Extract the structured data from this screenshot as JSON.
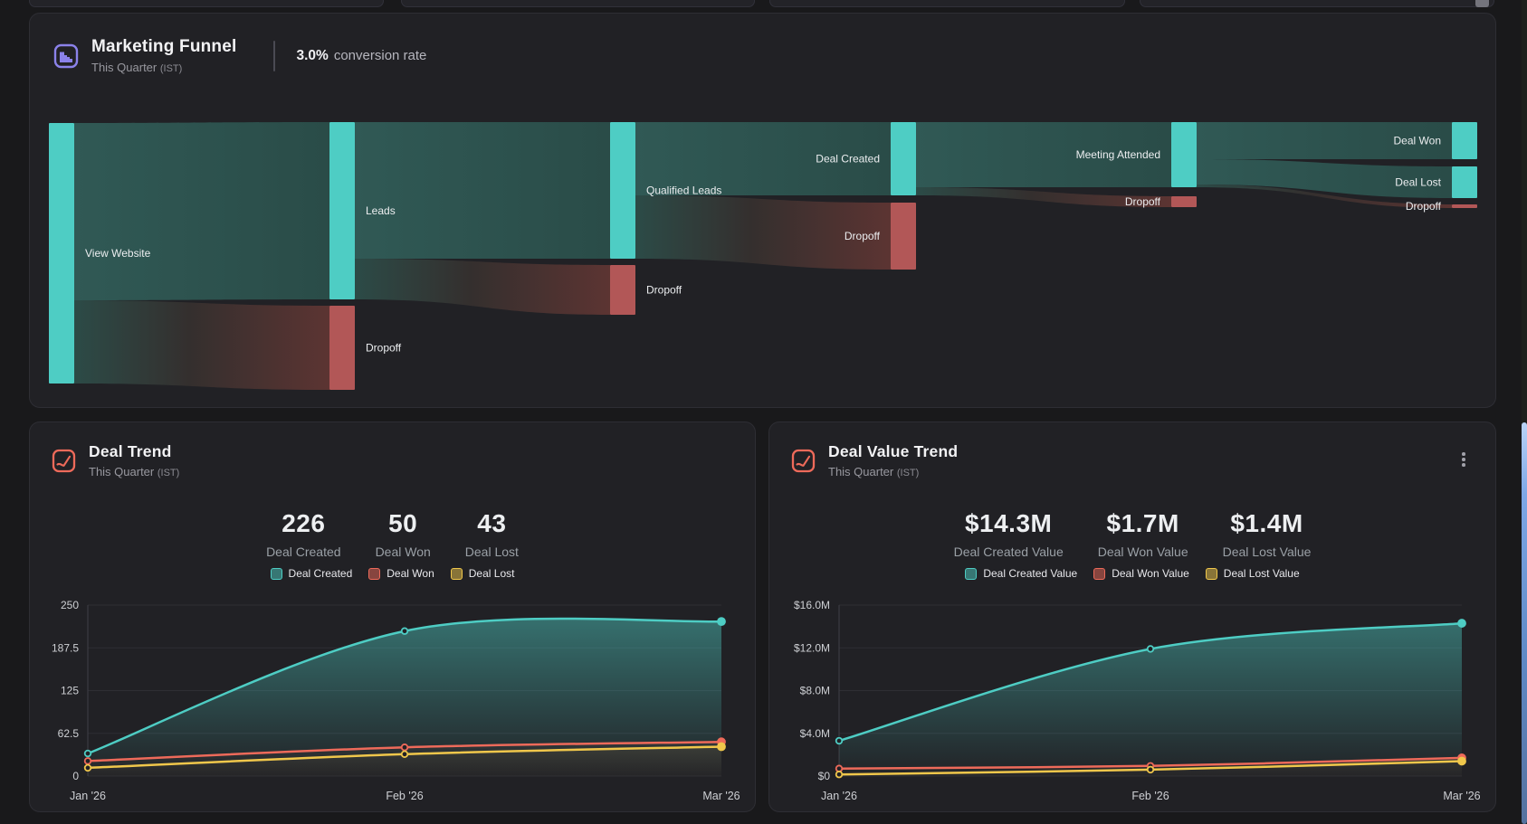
{
  "colors": {
    "teal": "#4ecdc4",
    "sankey_dropoff_red": "#b25757",
    "line_red": "#ee6a5a",
    "line_yellow": "#f0c74b",
    "accent_purple": "#8b82ea",
    "accent_red": "#ee6a5a",
    "scrollbar_blue": "#7da7e6",
    "card_bg": "#212125",
    "page_bg": "#19191b"
  },
  "funnel_card": {
    "title": "Marketing Funnel",
    "subtitle": "This Quarter",
    "timezone": "(IST)",
    "conversion_rate_value": "3.0%",
    "conversion_rate_label": "conversion rate",
    "chart_data": {
      "type": "sankey",
      "note": "node y/size are relative magnitudes as depicted",
      "nodes": [
        {
          "id": "view-website",
          "label": "View Website",
          "col": 0,
          "y": 10,
          "size": 288,
          "kind": "stage",
          "side": "right"
        },
        {
          "id": "leads",
          "label": "Leads",
          "col": 1,
          "y": 9,
          "size": 196,
          "kind": "stage",
          "side": "right"
        },
        {
          "id": "dropoff-1",
          "label": "Dropoff",
          "col": 1,
          "y": 212,
          "size": 93,
          "kind": "dropoff",
          "side": "right"
        },
        {
          "id": "qualified-leads",
          "label": "Qualified Leads",
          "col": 2,
          "y": 9,
          "size": 151,
          "kind": "stage",
          "side": "right"
        },
        {
          "id": "dropoff-2",
          "label": "Dropoff",
          "col": 2,
          "y": 167,
          "size": 55,
          "kind": "dropoff",
          "side": "right"
        },
        {
          "id": "deal-created",
          "label": "Deal Created",
          "col": 3,
          "y": 9,
          "size": 81,
          "kind": "stage",
          "side": "left"
        },
        {
          "id": "dropoff-3",
          "label": "Dropoff",
          "col": 3,
          "y": 98,
          "size": 74,
          "kind": "dropoff",
          "side": "left"
        },
        {
          "id": "meeting-attended",
          "label": "Meeting Attended",
          "col": 4,
          "y": 9,
          "size": 72,
          "kind": "stage",
          "side": "left"
        },
        {
          "id": "dropoff-4",
          "label": "Dropoff",
          "col": 4,
          "y": 91,
          "size": 12,
          "kind": "dropoff",
          "side": "left"
        },
        {
          "id": "deal-won",
          "label": "Deal Won",
          "col": 5,
          "y": 9,
          "size": 41,
          "kind": "stage",
          "side": "left"
        },
        {
          "id": "deal-lost",
          "label": "Deal Lost",
          "col": 5,
          "y": 58,
          "size": 35,
          "kind": "stage",
          "side": "left"
        },
        {
          "id": "dropoff-5",
          "label": "Dropoff",
          "col": 5,
          "y": 100,
          "size": 4,
          "kind": "dropoff",
          "side": "left"
        }
      ],
      "links": [
        {
          "from": "view-website",
          "to": "leads",
          "s0": 10,
          "s1": 206,
          "t0": 9,
          "t1": 205,
          "kind": "flow"
        },
        {
          "from": "view-website",
          "to": "dropoff-1",
          "s0": 206,
          "s1": 298,
          "t0": 212,
          "t1": 305,
          "kind": "drop"
        },
        {
          "from": "leads",
          "to": "qualified-leads",
          "s0": 9,
          "s1": 160,
          "t0": 9,
          "t1": 160,
          "kind": "flow"
        },
        {
          "from": "leads",
          "to": "dropoff-2",
          "s0": 160,
          "s1": 205,
          "t0": 167,
          "t1": 222,
          "kind": "drop"
        },
        {
          "from": "qualified-leads",
          "to": "deal-created",
          "s0": 9,
          "s1": 90,
          "t0": 9,
          "t1": 90,
          "kind": "flow"
        },
        {
          "from": "qualified-leads",
          "to": "dropoff-3",
          "s0": 90,
          "s1": 160,
          "t0": 98,
          "t1": 172,
          "kind": "drop"
        },
        {
          "from": "deal-created",
          "to": "meeting-attended",
          "s0": 9,
          "s1": 81,
          "t0": 9,
          "t1": 81,
          "kind": "flow"
        },
        {
          "from": "deal-created",
          "to": "dropoff-4",
          "s0": 81,
          "s1": 90,
          "t0": 91,
          "t1": 103,
          "kind": "drop"
        },
        {
          "from": "meeting-attended",
          "to": "deal-won",
          "s0": 9,
          "s1": 50,
          "t0": 9,
          "t1": 50,
          "kind": "flow"
        },
        {
          "from": "meeting-attended",
          "to": "deal-lost",
          "s0": 50,
          "s1": 78,
          "t0": 58,
          "t1": 93,
          "kind": "flow"
        },
        {
          "from": "meeting-attended",
          "to": "dropoff-5",
          "s0": 78,
          "s1": 81,
          "t0": 100,
          "t1": 104,
          "kind": "drop"
        }
      ],
      "node_colors": {
        "stage": "#4ecdc4",
        "dropoff": "#b25757"
      }
    }
  },
  "deal_trend_card": {
    "title": "Deal Trend",
    "subtitle": "This Quarter",
    "timezone": "(IST)",
    "stats": [
      {
        "value": "226",
        "label": "Deal Created"
      },
      {
        "value": "50",
        "label": "Deal Won"
      },
      {
        "value": "43",
        "label": "Deal Lost"
      }
    ],
    "chart_data": {
      "type": "line",
      "x_labels": [
        "Jan '26",
        "Feb '26",
        "Mar '26"
      ],
      "ylim": [
        0,
        250
      ],
      "y_ticks": [
        {
          "v": 0,
          "label": "0"
        },
        {
          "v": 62.5,
          "label": "62.5"
        },
        {
          "v": 125,
          "label": "125"
        },
        {
          "v": 187.5,
          "label": "187.5"
        },
        {
          "v": 250,
          "label": "250"
        }
      ],
      "series": [
        {
          "name": "Deal Created",
          "color": "#4ecdc4",
          "area_opacity": 0.5,
          "values": [
            33,
            212,
            226
          ]
        },
        {
          "name": "Deal Won",
          "color": "#ee6a5a",
          "area_opacity": 0.22,
          "values": [
            22,
            42,
            50
          ]
        },
        {
          "name": "Deal Lost",
          "color": "#f0c74b",
          "area_opacity": 0.28,
          "values": [
            12,
            32,
            43
          ]
        }
      ],
      "legend_position": "top-center",
      "grid": true
    }
  },
  "deal_value_trend_card": {
    "title": "Deal Value Trend",
    "subtitle": "This Quarter",
    "timezone": "(IST)",
    "stats": [
      {
        "value": "$14.3M",
        "label": "Deal Created Value"
      },
      {
        "value": "$1.7M",
        "label": "Deal Won Value"
      },
      {
        "value": "$1.4M",
        "label": "Deal Lost Value"
      }
    ],
    "chart_data": {
      "type": "line",
      "x_labels": [
        "Jan '26",
        "Feb '26",
        "Mar '26"
      ],
      "ylim": [
        0,
        16
      ],
      "unit": "$M",
      "y_ticks": [
        {
          "v": 0,
          "label": "$0"
        },
        {
          "v": 4,
          "label": "$4.0M"
        },
        {
          "v": 8,
          "label": "$8.0M"
        },
        {
          "v": 12,
          "label": "$12.0M"
        },
        {
          "v": 16,
          "label": "$16.0M"
        }
      ],
      "series": [
        {
          "name": "Deal Created Value",
          "color": "#4ecdc4",
          "area_opacity": 0.5,
          "values": [
            3.3,
            11.9,
            14.3
          ]
        },
        {
          "name": "Deal Won Value",
          "color": "#ee6a5a",
          "area_opacity": 0.22,
          "values": [
            0.7,
            0.95,
            1.7
          ]
        },
        {
          "name": "Deal Lost Value",
          "color": "#f0c74b",
          "area_opacity": 0.28,
          "values": [
            0.15,
            0.6,
            1.4
          ]
        }
      ],
      "legend_position": "top-center",
      "grid": true
    }
  }
}
